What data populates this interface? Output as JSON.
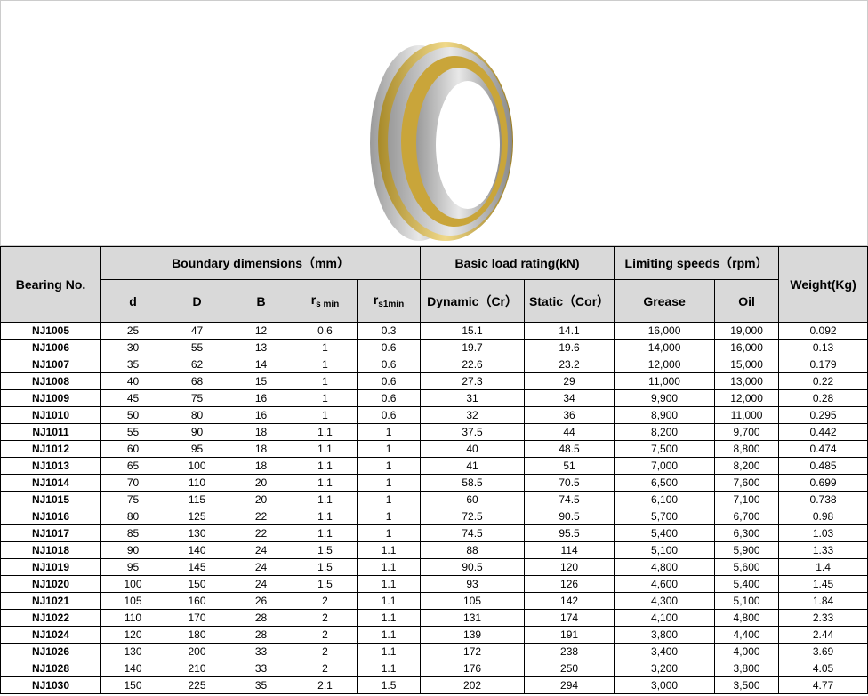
{
  "image": {
    "alt_subject": "bearing",
    "colors": {
      "ring": "#b8b8b8",
      "cage": "#c9a53a"
    }
  },
  "headers": {
    "bearing_no": "Bearing No.",
    "boundary": "Boundary dimensions（mm）",
    "load": "Basic load rating(kN)",
    "speeds": "Limiting speeds（rpm）",
    "weight": "Weight(Kg)",
    "d": "d",
    "D": "D",
    "B": "B",
    "rs_base": "r",
    "rs_sub": "s min",
    "rs1_base": "r",
    "rs1_sub": "s1min",
    "dynamic": "Dynamic（Cr）",
    "static": "Static（Cor）",
    "grease": "Grease",
    "oil": "Oil"
  },
  "rows": [
    [
      "NJ1005",
      "25",
      "47",
      "12",
      "0.6",
      "0.3",
      "15.1",
      "14.1",
      "16,000",
      "19,000",
      "0.092"
    ],
    [
      "NJ1006",
      "30",
      "55",
      "13",
      "1",
      "0.6",
      "19.7",
      "19.6",
      "14,000",
      "16,000",
      "0.13"
    ],
    [
      "NJ1007",
      "35",
      "62",
      "14",
      "1",
      "0.6",
      "22.6",
      "23.2",
      "12,000",
      "15,000",
      "0.179"
    ],
    [
      "NJ1008",
      "40",
      "68",
      "15",
      "1",
      "0.6",
      "27.3",
      "29",
      "11,000",
      "13,000",
      "0.22"
    ],
    [
      "NJ1009",
      "45",
      "75",
      "16",
      "1",
      "0.6",
      "31",
      "34",
      "9,900",
      "12,000",
      "0.28"
    ],
    [
      "NJ1010",
      "50",
      "80",
      "16",
      "1",
      "0.6",
      "32",
      "36",
      "8,900",
      "11,000",
      "0.295"
    ],
    [
      "NJ1011",
      "55",
      "90",
      "18",
      "1.1",
      "1",
      "37.5",
      "44",
      "8,200",
      "9,700",
      "0.442"
    ],
    [
      "NJ1012",
      "60",
      "95",
      "18",
      "1.1",
      "1",
      "40",
      "48.5",
      "7,500",
      "8,800",
      "0.474"
    ],
    [
      "NJ1013",
      "65",
      "100",
      "18",
      "1.1",
      "1",
      "41",
      "51",
      "7,000",
      "8,200",
      "0.485"
    ],
    [
      "NJ1014",
      "70",
      "110",
      "20",
      "1.1",
      "1",
      "58.5",
      "70.5",
      "6,500",
      "7,600",
      "0.699"
    ],
    [
      "NJ1015",
      "75",
      "115",
      "20",
      "1.1",
      "1",
      "60",
      "74.5",
      "6,100",
      "7,100",
      "0.738"
    ],
    [
      "NJ1016",
      "80",
      "125",
      "22",
      "1.1",
      "1",
      "72.5",
      "90.5",
      "5,700",
      "6,700",
      "0.98"
    ],
    [
      "NJ1017",
      "85",
      "130",
      "22",
      "1.1",
      "1",
      "74.5",
      "95.5",
      "5,400",
      "6,300",
      "1.03"
    ],
    [
      "NJ1018",
      "90",
      "140",
      "24",
      "1.5",
      "1.1",
      "88",
      "114",
      "5,100",
      "5,900",
      "1.33"
    ],
    [
      "NJ1019",
      "95",
      "145",
      "24",
      "1.5",
      "1.1",
      "90.5",
      "120",
      "4,800",
      "5,600",
      "1.4"
    ],
    [
      "NJ1020",
      "100",
      "150",
      "24",
      "1.5",
      "1.1",
      "93",
      "126",
      "4,600",
      "5,400",
      "1.45"
    ],
    [
      "NJ1021",
      "105",
      "160",
      "26",
      "2",
      "1.1",
      "105",
      "142",
      "4,300",
      "5,100",
      "1.84"
    ],
    [
      "NJ1022",
      "110",
      "170",
      "28",
      "2",
      "1.1",
      "131",
      "174",
      "4,100",
      "4,800",
      "2.33"
    ],
    [
      "NJ1024",
      "120",
      "180",
      "28",
      "2",
      "1.1",
      "139",
      "191",
      "3,800",
      "4,400",
      "2.44"
    ],
    [
      "NJ1026",
      "130",
      "200",
      "33",
      "2",
      "1.1",
      "172",
      "238",
      "3,400",
      "4,000",
      "3.69"
    ],
    [
      "NJ1028",
      "140",
      "210",
      "33",
      "2",
      "1.1",
      "176",
      "250",
      "3,200",
      "3,800",
      "4.05"
    ],
    [
      "NJ1030",
      "150",
      "225",
      "35",
      "2.1",
      "1.5",
      "202",
      "294",
      "3,000",
      "3,500",
      "4.77"
    ]
  ]
}
